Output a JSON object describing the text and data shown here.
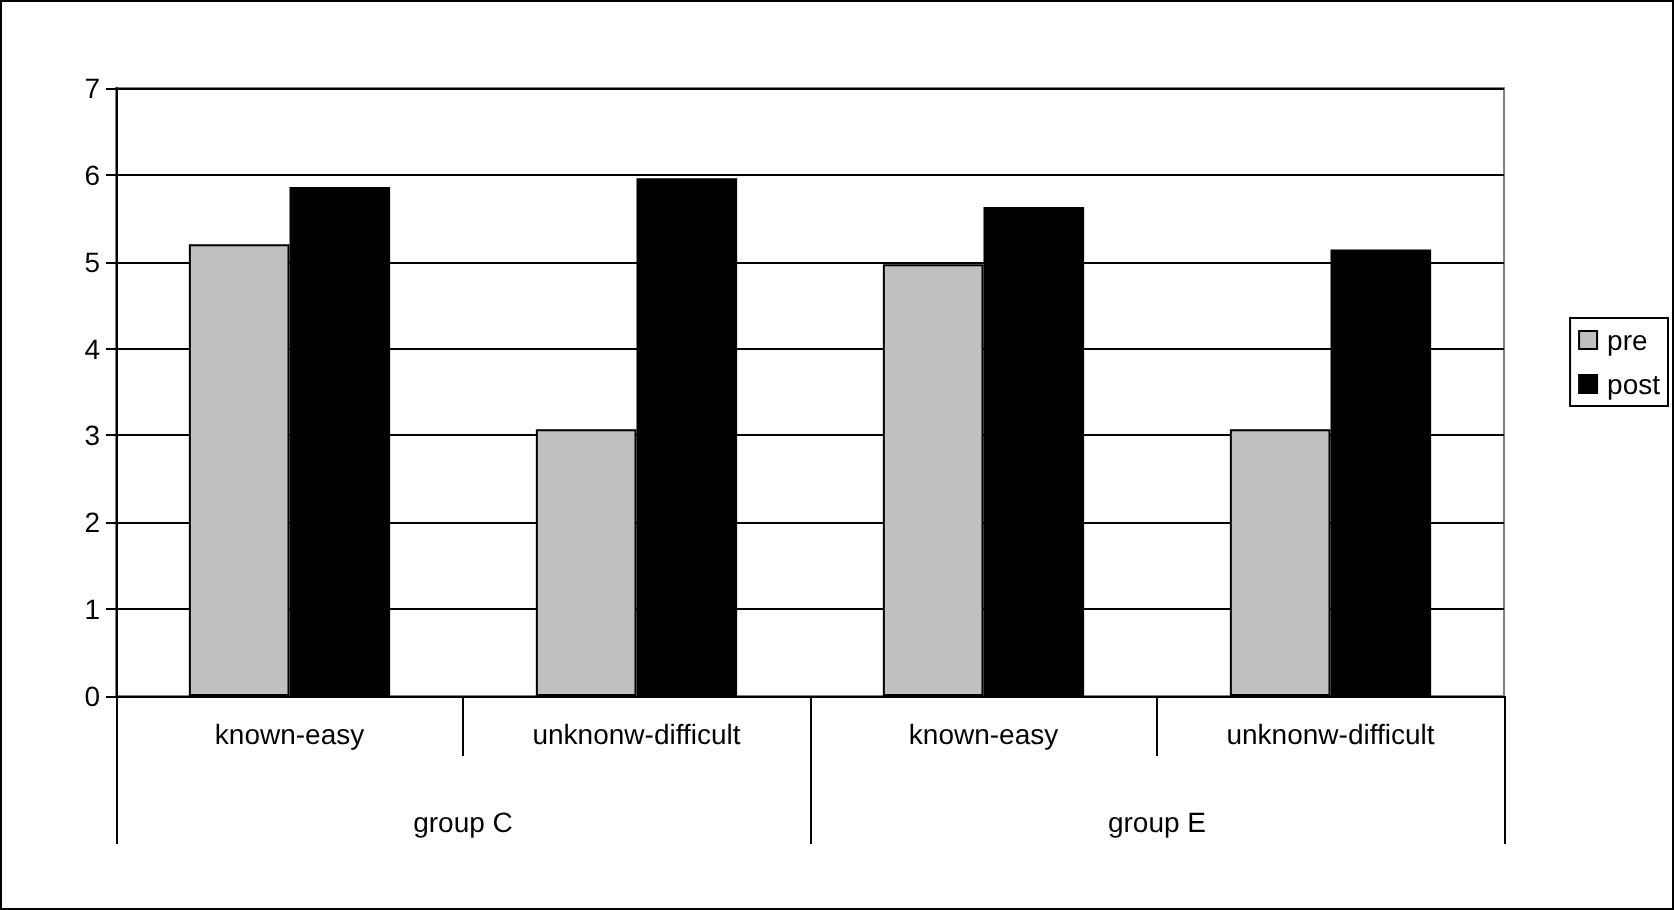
{
  "chart_data": {
    "type": "bar",
    "categories": [
      "known-easy",
      "unknonw-difficult",
      "known-easy",
      "unknonw-difficult"
    ],
    "series": [
      {
        "name": "pre",
        "color": "#c0c0c0",
        "values": [
          5.2,
          3.07,
          4.97,
          3.07
        ]
      },
      {
        "name": "post",
        "color": "#000000",
        "values": [
          5.86,
          5.96,
          5.63,
          5.14
        ]
      }
    ],
    "annotations": [
      "group C",
      "group E"
    ],
    "ylim": [
      0,
      7
    ],
    "yticks": [
      0,
      1,
      2,
      3,
      4,
      5,
      6,
      7
    ],
    "grid": "y",
    "legend": "right"
  }
}
